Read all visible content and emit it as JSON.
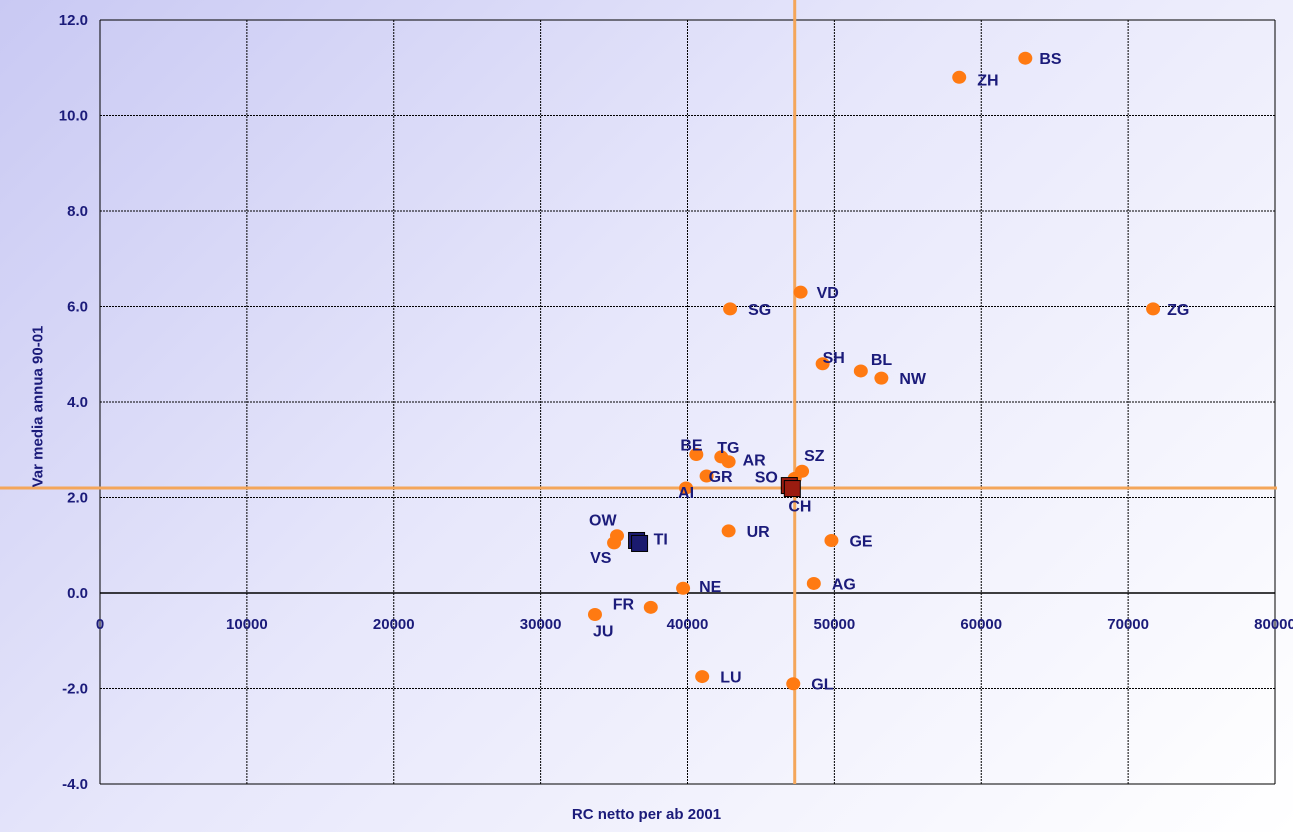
{
  "chart_data": {
    "type": "scatter",
    "xlabel": "RC netto per ab 2001",
    "ylabel": "Var media annua 90-01",
    "xlim": [
      0,
      80000
    ],
    "ylim": [
      -4.0,
      12.0
    ],
    "xticks": [
      "0",
      "10000",
      "20000",
      "30000",
      "40000",
      "50000",
      "60000",
      "70000",
      "80000"
    ],
    "yticks": [
      "12.0",
      "10.0",
      "8.0",
      "6.0",
      "4.0",
      "2.0",
      "0.0",
      "-2.0",
      "-4.0"
    ],
    "grid": true,
    "reference_lines": {
      "x": 47300,
      "y": 2.2
    },
    "colors": {
      "point": "#ff7a12",
      "reference": "#f4a65a",
      "label": "#1b1b7a",
      "grid": "#000000",
      "ch_marker": "#9b1c10",
      "ti_marker": "#1a1a6e"
    },
    "points": [
      {
        "label": "BS",
        "x": 63000,
        "y": 11.2
      },
      {
        "label": "ZH",
        "x": 58500,
        "y": 10.8
      },
      {
        "label": "ZG",
        "x": 71700,
        "y": 5.95
      },
      {
        "label": "VD",
        "x": 47700,
        "y": 6.3
      },
      {
        "label": "SG",
        "x": 42900,
        "y": 5.95
      },
      {
        "label": "SH",
        "x": 49200,
        "y": 4.8
      },
      {
        "label": "BL",
        "x": 51800,
        "y": 4.65
      },
      {
        "label": "NW",
        "x": 53200,
        "y": 4.5
      },
      {
        "label": "BE",
        "x": 40600,
        "y": 2.9
      },
      {
        "label": "TG",
        "x": 42300,
        "y": 2.85
      },
      {
        "label": "AR",
        "x": 42800,
        "y": 2.75
      },
      {
        "label": "SZ",
        "x": 47800,
        "y": 2.55
      },
      {
        "label": "SO",
        "x": 47300,
        "y": 2.4
      },
      {
        "label": "GR",
        "x": 41300,
        "y": 2.45
      },
      {
        "label": "AI",
        "x": 39900,
        "y": 2.2
      },
      {
        "label": "OW",
        "x": 35200,
        "y": 1.2
      },
      {
        "label": "VS",
        "x": 35000,
        "y": 1.05
      },
      {
        "label": "UR",
        "x": 42800,
        "y": 1.3
      },
      {
        "label": "GE",
        "x": 49800,
        "y": 1.1
      },
      {
        "label": "NE",
        "x": 39700,
        "y": 0.1
      },
      {
        "label": "AG",
        "x": 48600,
        "y": 0.2
      },
      {
        "label": "FR",
        "x": 37500,
        "y": -0.3
      },
      {
        "label": "JU",
        "x": 33700,
        "y": -0.45
      },
      {
        "label": "LU",
        "x": 41000,
        "y": -1.75
      },
      {
        "label": "GL",
        "x": 47200,
        "y": -1.9
      }
    ],
    "special_points": [
      {
        "label": "CH",
        "x": 47000,
        "y": 2.25,
        "marker": "square"
      },
      {
        "label": "TI",
        "x": 36600,
        "y": 1.1,
        "marker": "square"
      }
    ]
  }
}
